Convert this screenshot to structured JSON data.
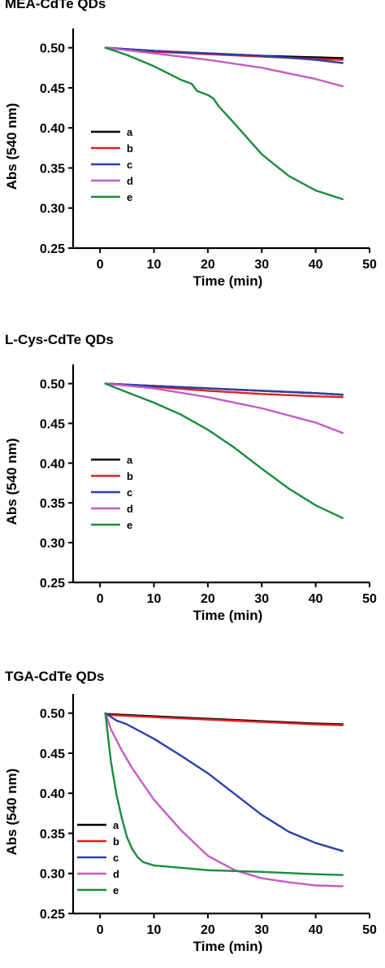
{
  "chart_data": [
    {
      "type": "line",
      "title": "MEA-CdTe QDs",
      "xlabel": "Time (min)",
      "ylabel": "Abs (540 nm)",
      "xlim": [
        -5,
        50
      ],
      "ylim": [
        0.25,
        0.52
      ],
      "xticks": [
        "0",
        "10",
        "20",
        "30",
        "40",
        "50"
      ],
      "yticks": [
        "0.25",
        "0.30",
        "0.35",
        "0.40",
        "0.45",
        "0.50"
      ],
      "legend_position": "left",
      "series": [
        {
          "name": "a",
          "color": "#000000",
          "x": [
            1,
            10,
            20,
            30,
            40,
            45
          ],
          "y": [
            0.5,
            0.496,
            0.493,
            0.49,
            0.488,
            0.487
          ]
        },
        {
          "name": "b",
          "color": "#e02020",
          "x": [
            1,
            10,
            20,
            30,
            40,
            45
          ],
          "y": [
            0.5,
            0.495,
            0.492,
            0.489,
            0.486,
            0.485
          ]
        },
        {
          "name": "c",
          "color": "#2f3fa8",
          "x": [
            1,
            10,
            20,
            30,
            40,
            45
          ],
          "y": [
            0.5,
            0.496,
            0.493,
            0.49,
            0.485,
            0.481
          ]
        },
        {
          "name": "d",
          "color": "#c45cc4",
          "x": [
            1,
            10,
            20,
            30,
            40,
            45
          ],
          "y": [
            0.5,
            0.493,
            0.485,
            0.475,
            0.461,
            0.452
          ]
        },
        {
          "name": "e",
          "color": "#1a8c3c",
          "x": [
            1,
            5,
            10,
            15,
            17,
            18,
            20,
            21,
            22,
            25,
            30,
            35,
            40,
            45
          ],
          "y": [
            0.5,
            0.491,
            0.477,
            0.46,
            0.455,
            0.446,
            0.441,
            0.437,
            0.427,
            0.405,
            0.367,
            0.34,
            0.322,
            0.311
          ]
        }
      ]
    },
    {
      "type": "line",
      "title": "L-Cys-CdTe QDs",
      "xlabel": "Time (min)",
      "ylabel": "Abs (540 nm)",
      "xlim": [
        -5,
        50
      ],
      "ylim": [
        0.25,
        0.52
      ],
      "xticks": [
        "0",
        "10",
        "20",
        "30",
        "40",
        "50"
      ],
      "yticks": [
        "0.25",
        "0.30",
        "0.35",
        "0.40",
        "0.45",
        "0.50"
      ],
      "legend_position": "left",
      "series": [
        {
          "name": "a",
          "color": "#000000",
          "x": [
            1,
            10,
            20,
            30,
            40,
            45
          ],
          "y": [
            0.5,
            0.497,
            0.494,
            0.491,
            0.488,
            0.486
          ]
        },
        {
          "name": "b",
          "color": "#e02020",
          "x": [
            1,
            10,
            20,
            30,
            40,
            45
          ],
          "y": [
            0.5,
            0.496,
            0.491,
            0.487,
            0.484,
            0.483
          ]
        },
        {
          "name": "c",
          "color": "#2f3fa8",
          "x": [
            1,
            10,
            20,
            30,
            40,
            45
          ],
          "y": [
            0.5,
            0.497,
            0.494,
            0.491,
            0.488,
            0.486
          ]
        },
        {
          "name": "d",
          "color": "#c45cc4",
          "x": [
            1,
            10,
            20,
            30,
            40,
            45
          ],
          "y": [
            0.5,
            0.494,
            0.483,
            0.469,
            0.451,
            0.438
          ]
        },
        {
          "name": "e",
          "color": "#1a8c3c",
          "x": [
            1,
            5,
            10,
            15,
            20,
            25,
            30,
            35,
            40,
            45
          ],
          "y": [
            0.5,
            0.489,
            0.476,
            0.461,
            0.442,
            0.419,
            0.393,
            0.368,
            0.347,
            0.331
          ]
        }
      ]
    },
    {
      "type": "line",
      "title": "TGA-CdTe QDs",
      "xlabel": "Time (min)",
      "ylabel": "Abs (540 nm)",
      "xlim": [
        -5,
        50
      ],
      "ylim": [
        0.25,
        0.52
      ],
      "xticks": [
        "0",
        "10",
        "20",
        "30",
        "40",
        "50"
      ],
      "yticks": [
        "0.25",
        "0.30",
        "0.35",
        "0.40",
        "0.45",
        "0.50"
      ],
      "legend_position": "bottom-left",
      "series": [
        {
          "name": "a",
          "color": "#000000",
          "x": [
            1,
            10,
            20,
            30,
            40,
            45
          ],
          "y": [
            0.499,
            0.496,
            0.493,
            0.49,
            0.487,
            0.486
          ]
        },
        {
          "name": "b",
          "color": "#e02020",
          "x": [
            1,
            10,
            20,
            30,
            40,
            45
          ],
          "y": [
            0.498,
            0.495,
            0.492,
            0.489,
            0.486,
            0.485
          ]
        },
        {
          "name": "c",
          "color": "#2f3fa8",
          "x": [
            1,
            3,
            5,
            10,
            15,
            20,
            25,
            30,
            35,
            40,
            45
          ],
          "y": [
            0.5,
            0.491,
            0.486,
            0.468,
            0.447,
            0.425,
            0.399,
            0.373,
            0.352,
            0.338,
            0.328
          ]
        },
        {
          "name": "d",
          "color": "#c45cc4",
          "x": [
            1,
            2,
            4,
            6,
            10,
            15,
            20,
            25,
            30,
            35,
            40,
            45
          ],
          "y": [
            0.5,
            0.48,
            0.454,
            0.431,
            0.392,
            0.354,
            0.322,
            0.304,
            0.294,
            0.289,
            0.285,
            0.284
          ]
        },
        {
          "name": "e",
          "color": "#1a8c3c",
          "x": [
            1,
            1.5,
            2,
            3,
            4,
            5,
            6,
            7,
            8,
            10,
            15,
            20,
            30,
            40,
            45
          ],
          "y": [
            0.5,
            0.47,
            0.44,
            0.4,
            0.37,
            0.345,
            0.33,
            0.32,
            0.314,
            0.31,
            0.307,
            0.304,
            0.302,
            0.299,
            0.298
          ]
        }
      ]
    }
  ]
}
